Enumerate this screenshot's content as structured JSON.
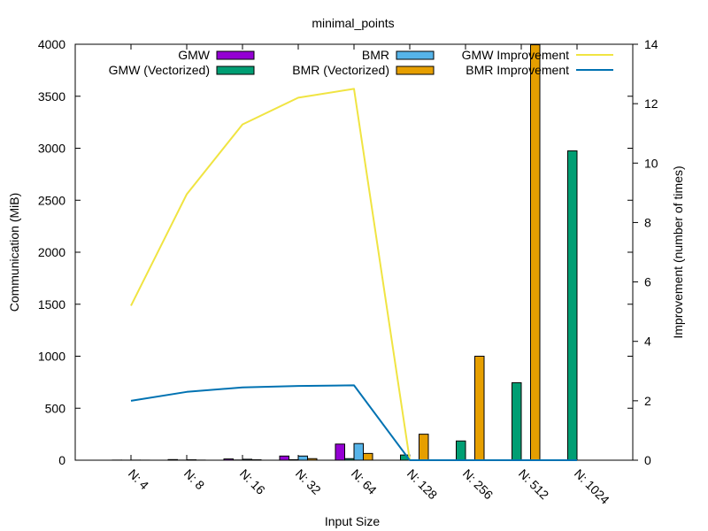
{
  "chart_data": {
    "type": "bar",
    "title": "minimal_points",
    "xlabel": "Input Size",
    "ylabel": "Communication (MiB)",
    "y2label": "Improvement (number of times)",
    "categories": [
      "N: 4",
      "N: 8",
      "N: 16",
      "N: 32",
      "N: 64",
      "N: 128",
      "N: 256",
      "N: 512",
      "N: 1024"
    ],
    "ylim": [
      0,
      4000
    ],
    "yticks": [
      0,
      500,
      1000,
      1500,
      2000,
      2500,
      3000,
      3500,
      4000
    ],
    "y2lim": [
      0,
      14
    ],
    "y2ticks": [
      0,
      2,
      4,
      6,
      8,
      10,
      12,
      14
    ],
    "bar_series": [
      {
        "name": "GMW",
        "color": "#9400d3",
        "values": [
          1,
          6,
          12,
          40,
          155,
          null,
          null,
          null,
          null
        ]
      },
      {
        "name": "GMW (Vectorized)",
        "color": "#009e73",
        "values": [
          0.5,
          1,
          2,
          5,
          15,
          50,
          185,
          745,
          2975
        ]
      },
      {
        "name": "BMR",
        "color": "#56b4e9",
        "values": [
          1,
          4,
          9,
          40,
          160,
          null,
          null,
          null,
          null
        ]
      },
      {
        "name": "BMR (Vectorized)",
        "color": "#e69f00",
        "values": [
          0.5,
          1,
          4,
          15,
          65,
          250,
          1000,
          3995,
          null
        ]
      }
    ],
    "line_series": [
      {
        "name": "GMW Improvement",
        "color": "#f0e442",
        "values": [
          5.2,
          8.95,
          11.3,
          12.2,
          12.5,
          0,
          0,
          0,
          0
        ]
      },
      {
        "name": "BMR Improvement",
        "color": "#0072b2",
        "values": [
          2.0,
          2.3,
          2.45,
          2.5,
          2.52,
          0,
          0,
          0,
          0
        ]
      }
    ],
    "legend_position": "top"
  }
}
